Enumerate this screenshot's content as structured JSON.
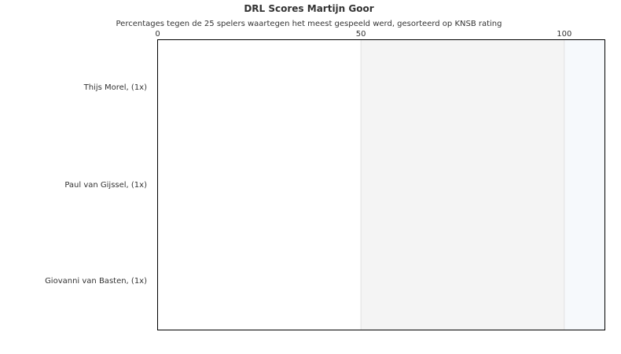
{
  "chart_data": {
    "type": "bar",
    "orientation": "horizontal",
    "title": "DRL Scores Martijn Goor",
    "subtitle": "Percentages tegen de 25 spelers waartegen het meest gespeeld werd, gesorteerd op KNSB rating",
    "categories": [
      "Thijs Morel,  (1x)",
      "Paul van Gijssel,  (1x)",
      "Giovanni van Basten,  (1x)"
    ],
    "values": [
      0,
      0,
      0
    ],
    "xlim": [
      0,
      110
    ],
    "xticks": [
      "0",
      "50",
      "100"
    ],
    "xtick_values": [
      0,
      50,
      100
    ],
    "bands": [
      {
        "from": 0,
        "to": 50,
        "color": "#ffffff"
      },
      {
        "from": 50,
        "to": 100,
        "color": "#f4f4f4"
      },
      {
        "from": 100,
        "to": 110,
        "color": "#f6f9fc"
      }
    ],
    "bar_color": "#4572a7",
    "xaxis_position": "top",
    "grid": false
  }
}
